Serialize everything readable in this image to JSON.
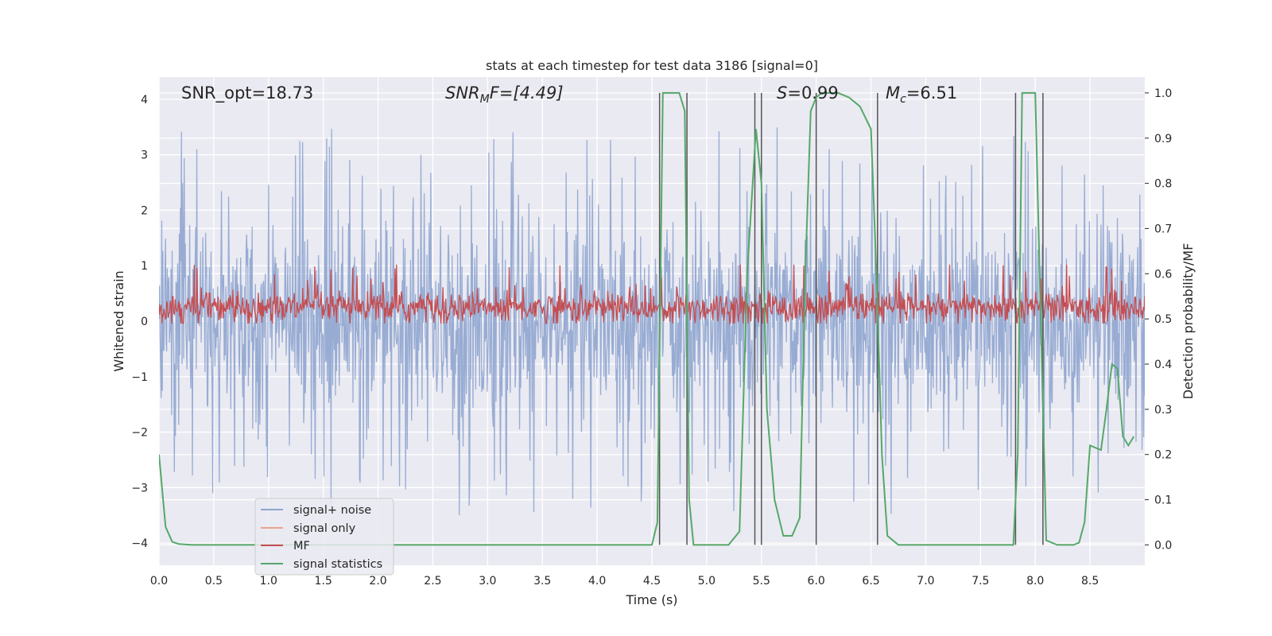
{
  "chart_data": {
    "type": "line",
    "title": "stats at each timestep for test data 3186 [signal=0]",
    "xlabel": "Time (s)",
    "ylabel": "Whitened strain",
    "ylabel_right": "Detection probability/MF",
    "xlim": [
      0,
      9
    ],
    "ylim": [
      -4.4,
      4.4
    ],
    "ylim_right": [
      -0.045,
      1.035
    ],
    "x_ticks": [
      0.0,
      0.5,
      1.0,
      1.5,
      2.0,
      2.5,
      3.0,
      3.5,
      4.0,
      4.5,
      5.0,
      5.5,
      6.0,
      6.5,
      7.0,
      7.5,
      8.0,
      8.5
    ],
    "x_tick_labels": [
      "0.0",
      "0.5",
      "1.0",
      "1.5",
      "2.0",
      "2.5",
      "3.0",
      "3.5",
      "4.0",
      "4.5",
      "5.0",
      "5.5",
      "6.0",
      "6.5",
      "7.0",
      "7.5",
      "8.0",
      "8.5"
    ],
    "y_ticks": [
      4,
      3,
      2,
      1,
      0,
      -1,
      -2,
      -3,
      -4
    ],
    "y_tick_labels": [
      "4",
      "3",
      "2",
      "1",
      "0",
      "−1",
      "−2",
      "−3",
      "−4"
    ],
    "y_right_ticks": [
      1.0,
      0.9,
      0.8,
      0.7,
      0.6,
      0.5,
      0.4,
      0.3,
      0.2,
      0.1,
      0.0
    ],
    "y_right_tick_labels": [
      "1.0",
      "0.9",
      "0.8",
      "0.7",
      "0.6",
      "0.5",
      "0.4",
      "0.3",
      "0.2",
      "0.1",
      "0.0"
    ],
    "annotations": {
      "snr_opt": "SNR_opt=18.73",
      "snr_mf_symbol": "SNR",
      "snr_mf_sub": "M",
      "snr_mf_suffix": "F=[4.49]",
      "s_symbol": "S",
      "s_value": "=0.99",
      "mc_symbol": "M",
      "mc_sub": "c",
      "mc_value": "=6.51"
    },
    "legend": {
      "position": "lower-left",
      "entries": [
        {
          "label": "signal+ noise",
          "color": "#8fa5cf"
        },
        {
          "label": "signal only",
          "color": "#e8a48a"
        },
        {
          "label": "MF",
          "color": "#c44e52"
        },
        {
          "label": "signal statistics",
          "color": "#55a868"
        }
      ]
    },
    "series": [
      {
        "name": "signal+ noise",
        "color": "#8fa5cf",
        "description_range": [
          -3.9,
          3.6
        ]
      },
      {
        "name": "MF",
        "color": "#c44e52",
        "axis": "right",
        "description_range": [
          0.49,
          0.62
        ]
      },
      {
        "name": "signal statistics",
        "color": "#55a868",
        "axis": "right",
        "x": [
          0.0,
          0.06,
          0.12,
          0.18,
          0.3,
          1.0,
          1.5,
          2.0,
          4.4,
          4.5,
          4.55,
          4.6,
          4.67,
          4.75,
          4.8,
          4.84,
          4.88,
          4.95,
          5.0,
          5.2,
          5.3,
          5.37,
          5.45,
          5.5,
          5.55,
          5.62,
          5.7,
          5.78,
          5.85,
          5.9,
          5.95,
          6.0,
          6.05,
          6.1,
          6.2,
          6.3,
          6.4,
          6.5,
          6.55,
          6.6,
          6.65,
          6.75,
          6.85,
          7.0,
          7.5,
          7.8,
          7.84,
          7.88,
          7.93,
          8.0,
          8.05,
          8.1,
          8.2,
          8.3,
          8.35,
          8.4,
          8.45,
          8.5,
          8.6,
          8.65,
          8.7,
          8.75,
          8.8,
          8.85,
          8.9
        ],
        "values": [
          0.2,
          0.04,
          0.007,
          0.002,
          0.0,
          0.0,
          0.0,
          0.0,
          0.0,
          0.0,
          0.05,
          1.0,
          1.0,
          1.0,
          0.96,
          0.1,
          0.0,
          0.0,
          0.0,
          0.0,
          0.03,
          0.6,
          0.92,
          0.8,
          0.3,
          0.1,
          0.02,
          0.02,
          0.06,
          0.6,
          0.96,
          0.99,
          1.0,
          1.0,
          1.0,
          0.99,
          0.97,
          0.92,
          0.6,
          0.2,
          0.02,
          0.0,
          0.0,
          0.0,
          0.0,
          0.0,
          0.2,
          1.0,
          1.0,
          1.0,
          0.5,
          0.01,
          0.0,
          0.0,
          0.0,
          0.005,
          0.05,
          0.22,
          0.21,
          0.3,
          0.4,
          0.39,
          0.24,
          0.22,
          0.24
        ]
      }
    ],
    "vertical_lines": [
      4.57,
      4.82,
      5.44,
      5.5,
      6.0,
      6.56,
      7.82,
      8.07
    ]
  }
}
